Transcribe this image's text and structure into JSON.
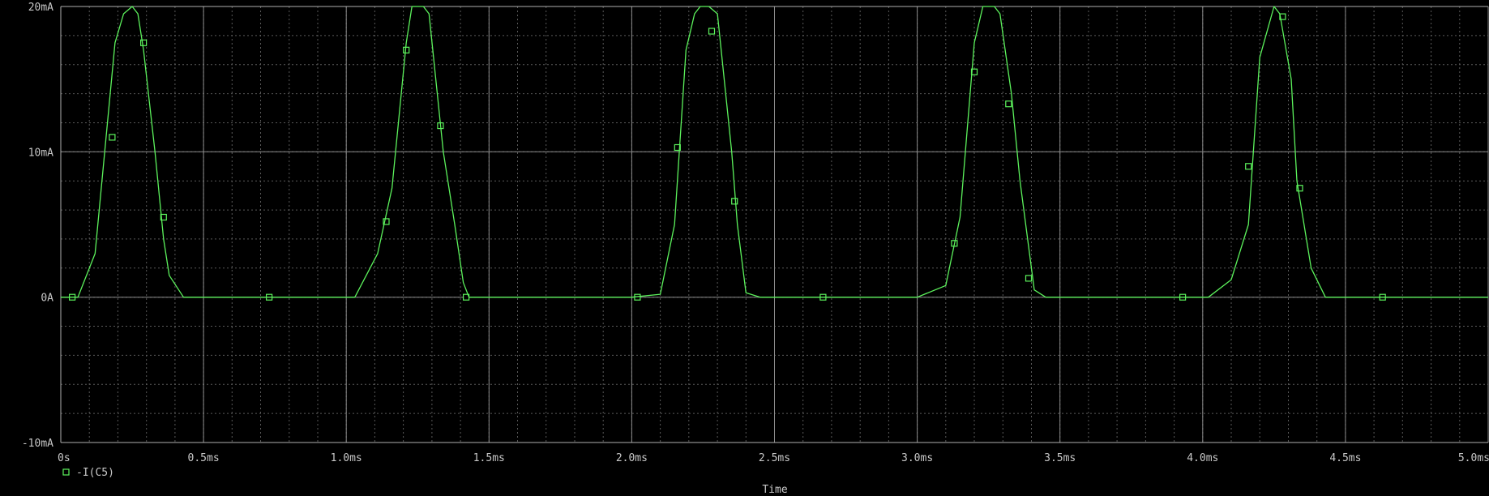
{
  "chart_data": {
    "type": "line",
    "title": "",
    "xlabel": "Time",
    "ylabel": "",
    "xlim": [
      0,
      5.0
    ],
    "ylim": [
      -10,
      20
    ],
    "x_unit": "ms",
    "y_unit": "mA",
    "grid": true,
    "x_ticks": [
      0,
      0.5,
      1.0,
      1.5,
      2.0,
      2.5,
      3.0,
      3.5,
      4.0,
      4.5,
      5.0
    ],
    "x_tick_labels": [
      "0s",
      "0.5ms",
      "1.0ms",
      "1.5ms",
      "2.0ms",
      "2.5ms",
      "3.0ms",
      "3.5ms",
      "4.0ms",
      "4.5ms",
      "5.0ms"
    ],
    "y_ticks": [
      -10,
      0,
      10,
      20
    ],
    "y_tick_labels": [
      "-10mA",
      "0A",
      "10mA",
      "20mA"
    ],
    "x_minor_step": 0.1,
    "y_minor_step": 2,
    "legend": [
      {
        "marker": "square",
        "label": "-I(C5)",
        "color": "#5cf25c"
      }
    ],
    "series": [
      {
        "name": "-I(C5)",
        "color": "#5cf25c",
        "x": [
          0,
          0.06,
          0.12,
          0.19,
          0.22,
          0.25,
          0.27,
          0.29,
          0.33,
          0.36,
          0.38,
          0.43,
          0.6,
          0.8,
          1.0,
          1.03,
          1.11,
          1.16,
          1.21,
          1.23,
          1.27,
          1.29,
          1.34,
          1.38,
          1.41,
          1.43,
          1.6,
          1.8,
          2.0,
          2.1,
          2.15,
          2.19,
          2.22,
          2.24,
          2.27,
          2.3,
          2.35,
          2.37,
          2.4,
          2.45,
          2.6,
          2.8,
          3.0,
          3.1,
          3.15,
          3.2,
          3.23,
          3.27,
          3.29,
          3.33,
          3.36,
          3.41,
          3.45,
          3.6,
          3.8,
          4.0,
          4.02,
          4.1,
          4.16,
          4.2,
          4.25,
          4.27,
          4.31,
          4.33,
          4.38,
          4.43,
          4.6,
          4.8,
          5.0
        ],
        "y": [
          0,
          0,
          3,
          17.5,
          19.5,
          20,
          19.5,
          17,
          10,
          4,
          1.5,
          0,
          0,
          0,
          0,
          0,
          3,
          7.5,
          17.5,
          20,
          20,
          19.5,
          10,
          5,
          1,
          0,
          0,
          0,
          0,
          0.2,
          5,
          17,
          19.5,
          20,
          20,
          19.5,
          10,
          5,
          0.3,
          0,
          0,
          0,
          0,
          0.8,
          5.5,
          17.5,
          20,
          20,
          19.5,
          14,
          8,
          0.5,
          0,
          0,
          0,
          0,
          0,
          1.2,
          5,
          16.5,
          20,
          19.5,
          15,
          8,
          2,
          0,
          0,
          0,
          0
        ]
      }
    ],
    "markers": {
      "shape": "square",
      "x": [
        0.04,
        0.18,
        0.29,
        0.36,
        0.73,
        1.14,
        1.21,
        1.33,
        1.42,
        2.02,
        2.16,
        2.28,
        2.36,
        2.67,
        3.13,
        3.2,
        3.32,
        3.39,
        3.93,
        4.16,
        4.28,
        4.34,
        4.63
      ],
      "y": [
        0,
        11,
        17.5,
        5.5,
        0,
        5.2,
        17,
        11.8,
        0,
        0,
        10.3,
        18.3,
        6.6,
        0,
        3.7,
        15.5,
        13.3,
        1.3,
        0,
        9,
        19.3,
        7.5,
        0
      ]
    }
  }
}
